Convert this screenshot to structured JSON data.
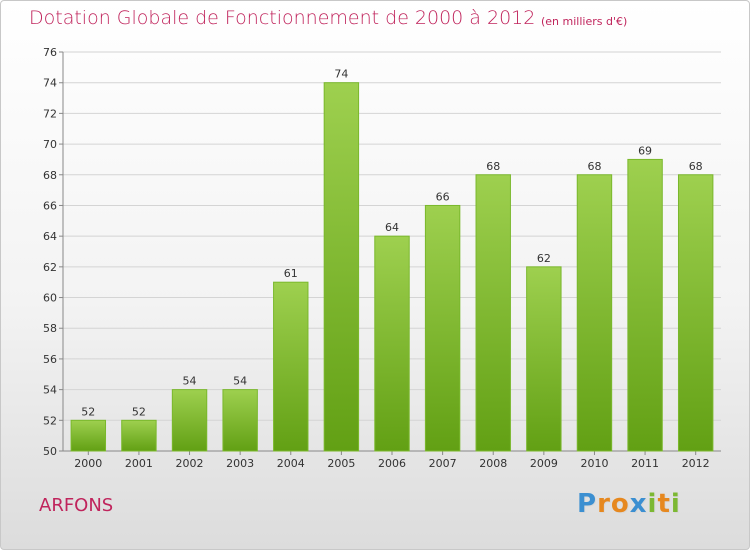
{
  "header": {
    "title": "Dotation Globale de Fonctionnement de 2000 à 2012",
    "subtitle": "(en milliers d'€)"
  },
  "footer": {
    "location": "ARFONS",
    "brand_letters": [
      "P",
      "r",
      "o",
      "x",
      "i",
      "t",
      "i"
    ],
    "brand_colors": [
      "#3b8fd1",
      "#e6881f",
      "#e6881f",
      "#3b8fd1",
      "#7cb833",
      "#e6881f",
      "#7cb833"
    ]
  },
  "colors": {
    "title": "#c0245c",
    "bar_top": "#9ed04f",
    "bar_bottom": "#62a014",
    "bar_stroke": "#7ab82c",
    "grid": "#d4d4d4"
  },
  "chart_data": {
    "type": "bar",
    "categories": [
      "2000",
      "2001",
      "2002",
      "2003",
      "2004",
      "2005",
      "2006",
      "2007",
      "2008",
      "2009",
      "2010",
      "2011",
      "2012"
    ],
    "values": [
      52,
      52,
      54,
      54,
      61,
      74,
      64,
      66,
      68,
      62,
      68,
      69,
      68
    ],
    "title": "Dotation Globale de Fonctionnement de 2000 à 2012",
    "subtitle": "(en milliers d'€)",
    "xlabel": "",
    "ylabel": "",
    "ylim": [
      50,
      76
    ],
    "yticks": [
      50,
      52,
      54,
      56,
      58,
      60,
      62,
      64,
      66,
      68,
      70,
      72,
      74,
      76
    ],
    "grid": true,
    "legend": "none",
    "data_labels": true
  }
}
